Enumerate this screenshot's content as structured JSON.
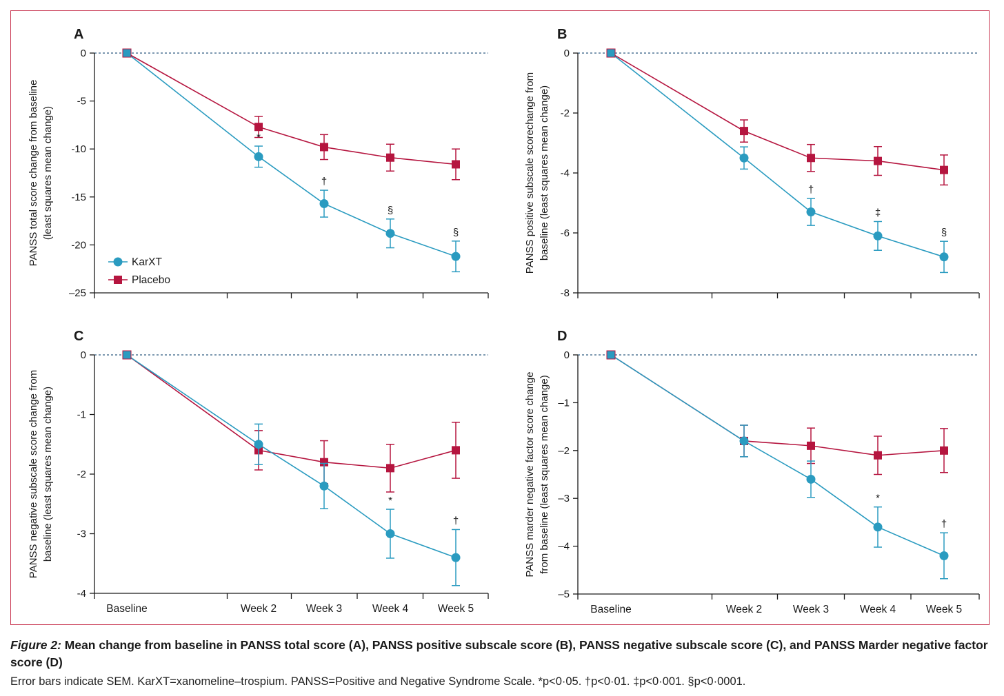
{
  "colors": {
    "frame": "#c8344f",
    "karxt": "#2a9bc0",
    "placebo": "#b5153f",
    "axis": "#1a1a1a",
    "zero_line": "#2e5a80"
  },
  "caption": {
    "label": "Figure 2:",
    "title": " Mean change from baseline in PANSS total score (A), PANSS positive subscale score (B), PANSS negative subscale score (C), and PANSS Marder negative factor score (D)",
    "notes": "Error bars indicate SEM. KarXT=xanomeline–trospium. PANSS=Positive and Negative Syndrome Scale. *p<0·05. †p<0·01. ‡p<0·001. §p<0·0001."
  },
  "legend": {
    "placement": "bottom-left of panel A",
    "items": [
      {
        "label": "KarXT",
        "marker": "circle",
        "color": "#2a9bc0"
      },
      {
        "label": "Placebo",
        "marker": "square",
        "color": "#b5153f"
      }
    ]
  },
  "chart_data": [
    {
      "panel": "A",
      "type": "line",
      "ylabel": "PANSS total score change from baseline (least squares mean change)",
      "ylabel_lines": [
        "PANSS total score change from baseline",
        "(least squares mean change)"
      ],
      "ylim": [
        -25,
        0
      ],
      "yticks": [
        0,
        -5,
        -10,
        -15,
        -20,
        -25
      ],
      "ytick_labels": [
        "0",
        "-5",
        "-10",
        "-15",
        "-20",
        "–25"
      ],
      "x": [
        "Baseline",
        "Week 2",
        "Week 3",
        "Week 4",
        "Week 5"
      ],
      "series": [
        {
          "name": "KarXT",
          "values": [
            0,
            -10.8,
            -15.7,
            -18.8,
            -21.2
          ],
          "sem": [
            0,
            1.1,
            1.4,
            1.5,
            1.6
          ]
        },
        {
          "name": "Placebo",
          "values": [
            0,
            -7.7,
            -9.8,
            -10.9,
            -11.6
          ],
          "sem": [
            0,
            1.1,
            1.3,
            1.4,
            1.6
          ]
        }
      ],
      "significance": [
        "",
        "*",
        "†",
        "§",
        "§"
      ]
    },
    {
      "panel": "B",
      "type": "line",
      "ylabel": "PANSS positive subscale scorechange from baseline (least squares mean change)",
      "ylabel_lines": [
        "PANSS positive subscale scorechange from",
        "baseline (least squares mean change)"
      ],
      "ylim": [
        -8,
        0
      ],
      "yticks": [
        0,
        -2,
        -4,
        -6,
        -8
      ],
      "ytick_labels": [
        "0",
        "-2",
        "-4",
        "-6",
        "-8"
      ],
      "x": [
        "Baseline",
        "Week 2",
        "Week 3",
        "Week 4",
        "Week 5"
      ],
      "series": [
        {
          "name": "KarXT",
          "values": [
            0,
            -3.5,
            -5.3,
            -6.1,
            -6.8
          ],
          "sem": [
            0,
            0.37,
            0.45,
            0.48,
            0.52
          ]
        },
        {
          "name": "Placebo",
          "values": [
            0,
            -2.6,
            -3.5,
            -3.6,
            -3.9
          ],
          "sem": [
            0,
            0.37,
            0.45,
            0.48,
            0.5
          ]
        }
      ],
      "significance": [
        "",
        "",
        "†",
        "‡",
        "§"
      ]
    },
    {
      "panel": "C",
      "type": "line",
      "ylabel": "PANSS negative subscale score change from baseline (least squares mean change)",
      "ylabel_lines": [
        "PANSS negative subscale score change from",
        "baseline (least squares mean change)"
      ],
      "ylim": [
        -4,
        0
      ],
      "yticks": [
        0,
        -1,
        -2,
        -3,
        -4
      ],
      "ytick_labels": [
        "0",
        "-1",
        "-2",
        "-3",
        "-4"
      ],
      "x": [
        "Baseline",
        "Week 2",
        "Week 3",
        "Week 4",
        "Week 5"
      ],
      "series": [
        {
          "name": "KarXT",
          "values": [
            0,
            -1.5,
            -2.2,
            -3.0,
            -3.4
          ],
          "sem": [
            0,
            0.34,
            0.38,
            0.41,
            0.47
          ]
        },
        {
          "name": "Placebo",
          "values": [
            0,
            -1.6,
            -1.8,
            -1.9,
            -1.6
          ],
          "sem": [
            0,
            0.33,
            0.36,
            0.4,
            0.47
          ]
        }
      ],
      "significance": [
        "",
        "",
        "",
        "*",
        "†"
      ]
    },
    {
      "panel": "D",
      "type": "line",
      "ylabel": "PANSS marder negative factor score change from baseline (least squares mean change)",
      "ylabel_lines": [
        "PANSS marder negative factor score change",
        "from baseline (least squares mean change)"
      ],
      "ylim": [
        -5,
        0
      ],
      "yticks": [
        0,
        -1,
        -2,
        -3,
        -4,
        -5
      ],
      "ytick_labels": [
        "0",
        "–1",
        "–2",
        "–3",
        "–4",
        "–5"
      ],
      "x": [
        "Baseline",
        "Week 2",
        "Week 3",
        "Week 4",
        "Week 5"
      ],
      "series": [
        {
          "name": "KarXT",
          "values": [
            0,
            -1.8,
            -2.6,
            -3.6,
            -4.2
          ],
          "sem": [
            0,
            0.33,
            0.38,
            0.42,
            0.48
          ]
        },
        {
          "name": "Placebo",
          "values": [
            0,
            -1.8,
            -1.9,
            -2.1,
            -2.0
          ],
          "sem": [
            0,
            0.33,
            0.37,
            0.4,
            0.46
          ]
        }
      ],
      "significance": [
        "",
        "",
        "",
        "*",
        "†"
      ]
    }
  ]
}
